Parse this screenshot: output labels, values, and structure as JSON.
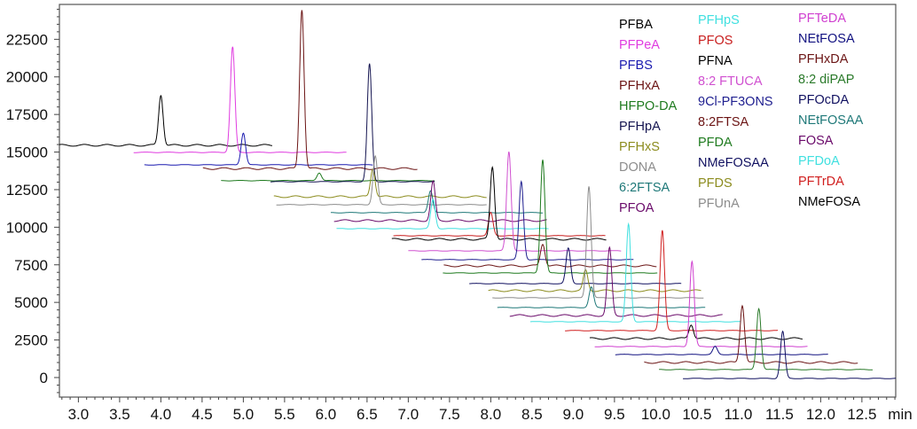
{
  "chart_data": {
    "type": "line",
    "title": "",
    "xlabel": "min",
    "ylabel": "",
    "xlim": [
      2.77,
      12.91
    ],
    "ylim": [
      -1300,
      24820
    ],
    "x_ticks": [
      "3.0",
      "3.5",
      "4.0",
      "4.5",
      "5.0",
      "5.5",
      "6.0",
      "6.5",
      "7.0",
      "7.5",
      "8.0",
      "8.5",
      "9.0",
      "9.5",
      "10.0",
      "10.5",
      "11.0",
      "11.5",
      "12.0",
      "12.5"
    ],
    "y_ticks": [
      "0",
      "2500",
      "5000",
      "7500",
      "10000",
      "12500",
      "15000",
      "17500",
      "20000",
      "22500"
    ],
    "grid": false,
    "legend_placement": "top-right",
    "legend_columns": [
      [
        "PFBA",
        "PFPeA",
        "PFBS",
        "PFHxA",
        "HFPO-DA",
        "PFHpA",
        "PFHxS",
        "DONA",
        "6:2FTSA",
        "PFOA"
      ],
      [
        "PFHpS",
        "PFOS",
        "PFNA",
        "8:2 FTUCA",
        "9Cl-PF3ONS",
        "8:2FTSA",
        "PFDA",
        "NMeFOSAA",
        "PFDS",
        "PFUnA"
      ],
      [
        "PFTeDA",
        "NEtFOSA",
        "PFHxDA",
        "8:2 diPAP",
        "PFOcDA",
        "NEtFOSAA",
        "FOSA",
        "PFDoA",
        "PFTrDA",
        "NMeFOSA"
      ]
    ],
    "series": [
      {
        "name": "PFBA",
        "color": "#000000",
        "start": 2.77,
        "end": 5.35,
        "baseline": 15450,
        "rt": 4.0,
        "apex": 18800
      },
      {
        "name": "PFPeA",
        "color": "#e03ce0",
        "start": 3.67,
        "end": 6.25,
        "baseline": 14980,
        "rt": 4.87,
        "apex": 22000
      },
      {
        "name": "PFBS",
        "color": "#1a1ab0",
        "start": 3.8,
        "end": 6.57,
        "baseline": 14150,
        "rt": 5.0,
        "apex": 16270
      },
      {
        "name": "PFHxA",
        "color": "#6b1414",
        "start": 4.51,
        "end": 7.11,
        "baseline": 13900,
        "rt": 5.71,
        "apex": 24500
      },
      {
        "name": "HFPO-DA",
        "color": "#1e7a1e",
        "start": 4.73,
        "end": 7.32,
        "baseline": 13100,
        "rt": 5.92,
        "apex": 13620
      },
      {
        "name": "PFHpA",
        "color": "#141450",
        "start": 5.33,
        "end": 7.32,
        "baseline": 13030,
        "rt": 6.53,
        "apex": 20870
      },
      {
        "name": "PFHxS",
        "color": "#8c8c1e",
        "start": 5.37,
        "end": 7.95,
        "baseline": 12030,
        "rt": 6.57,
        "apex": 13915
      },
      {
        "name": "DONA",
        "color": "#8c8c8c",
        "start": 5.4,
        "end": 7.95,
        "baseline": 11500,
        "rt": 6.6,
        "apex": 14740
      },
      {
        "name": "6:2FTSA",
        "color": "#1e7878",
        "start": 6.06,
        "end": 8.63,
        "baseline": 10970,
        "rt": 7.27,
        "apex": 12440
      },
      {
        "name": "PFOA",
        "color": "#6a0a6a",
        "start": 6.1,
        "end": 8.68,
        "baseline": 10440,
        "rt": 7.3,
        "apex": 13030
      },
      {
        "name": "PFHpS",
        "color": "#40e0e0",
        "start": 6.13,
        "end": 8.7,
        "baseline": 9905,
        "rt": 7.3,
        "apex": 11850
      },
      {
        "name": "PFOS",
        "color": "#c81e1e",
        "start": 6.82,
        "end": 9.39,
        "baseline": 9434,
        "rt": 8.0,
        "apex": 10970
      },
      {
        "name": "PFNA",
        "color": "#000000",
        "start": 6.8,
        "end": 9.4,
        "baseline": 9198,
        "rt": 8.02,
        "apex": 14030
      },
      {
        "name": "8:2 FTUCA",
        "color": "#d050d0",
        "start": 7.0,
        "end": 9.58,
        "baseline": 8431,
        "rt": 8.22,
        "apex": 15035
      },
      {
        "name": "9Cl-PF3ONS",
        "color": "#202090",
        "start": 7.16,
        "end": 9.73,
        "baseline": 7842,
        "rt": 8.37,
        "apex": 13030
      },
      {
        "name": "8:2FTSA",
        "color": "#6b1414",
        "start": 7.43,
        "end": 10.01,
        "baseline": 7429,
        "rt": 8.63,
        "apex": 8903
      },
      {
        "name": "PFDA",
        "color": "#1e7a1e",
        "start": 7.42,
        "end": 10.02,
        "baseline": 6957,
        "rt": 8.63,
        "apex": 14500
      },
      {
        "name": "NMeFOSAA",
        "color": "#101060",
        "start": 7.74,
        "end": 10.31,
        "baseline": 6250,
        "rt": 8.94,
        "apex": 8608
      },
      {
        "name": "PFDS",
        "color": "#8c8c1e",
        "start": 7.97,
        "end": 10.55,
        "baseline": 5778,
        "rt": 9.15,
        "apex": 7134
      },
      {
        "name": "PFUnA",
        "color": "#8c8c8c",
        "start": 8.02,
        "end": 10.58,
        "baseline": 5306,
        "rt": 9.19,
        "apex": 12735
      },
      {
        "name": "NEtFOSAA",
        "color": "#1e7878",
        "start": 8.08,
        "end": 10.6,
        "baseline": 4658,
        "rt": 9.22,
        "apex": 6014
      },
      {
        "name": "FOSA",
        "color": "#6a0a6a",
        "start": 8.23,
        "end": 10.81,
        "baseline": 4127,
        "rt": 9.44,
        "apex": 8608
      },
      {
        "name": "PFDoA",
        "color": "#40e0e0",
        "start": 8.48,
        "end": 11.03,
        "baseline": 3714,
        "rt": 9.67,
        "apex": 10200
      },
      {
        "name": "PFTrDA",
        "color": "#d01e1e",
        "start": 8.9,
        "end": 11.48,
        "baseline": 3125,
        "rt": 10.08,
        "apex": 9787
      },
      {
        "name": "NMeFOSA",
        "color": "#000000",
        "start": 9.2,
        "end": 11.78,
        "baseline": 2594,
        "rt": 10.43,
        "apex": 3538
      },
      {
        "name": "PFTeDA",
        "color": "#d040d0",
        "start": 9.26,
        "end": 11.84,
        "baseline": 2064,
        "rt": 10.44,
        "apex": 7724
      },
      {
        "name": "NEtFOSA",
        "color": "#101080",
        "start": 9.51,
        "end": 12.09,
        "baseline": 1533,
        "rt": 10.72,
        "apex": 2064
      },
      {
        "name": "PFHxDA",
        "color": "#6b1414",
        "start": 9.86,
        "end": 12.45,
        "baseline": 1002,
        "rt": 11.05,
        "apex": 4835
      },
      {
        "name": "8:2 diPAP",
        "color": "#2a7a2a",
        "start": 10.04,
        "end": 12.63,
        "baseline": 531,
        "rt": 11.25,
        "apex": 4599
      },
      {
        "name": "PFOcDA",
        "color": "#101060",
        "start": 10.33,
        "end": 12.91,
        "baseline": -60,
        "rt": 11.54,
        "apex": 3066
      }
    ]
  }
}
